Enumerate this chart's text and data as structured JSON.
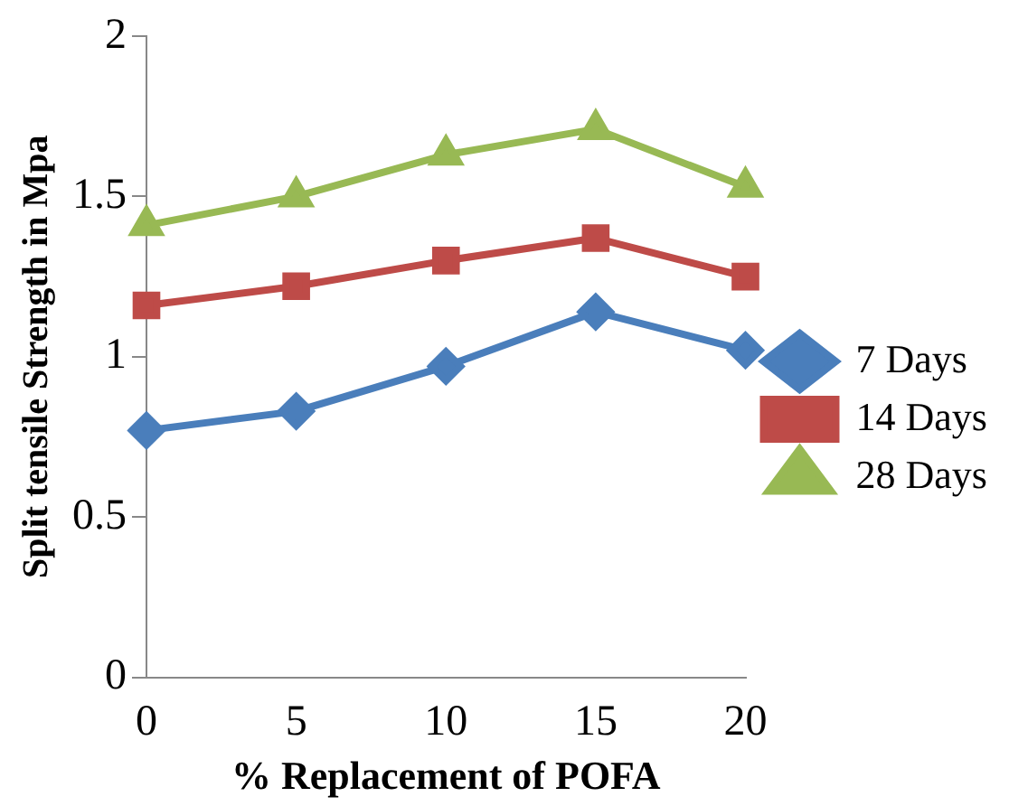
{
  "chart_data": {
    "type": "line",
    "xlabel": "% Replacement of POFA",
    "ylabel": "Split tensile Strength in Mpa",
    "categories": [
      "0",
      "5",
      "10",
      "15",
      "20"
    ],
    "series": [
      {
        "name": "7 Days",
        "color": "#4a7ebb",
        "marker": "diamond",
        "values": [
          0.77,
          0.83,
          0.97,
          1.14,
          1.02
        ]
      },
      {
        "name": "14 Days",
        "color": "#be4b48",
        "marker": "square",
        "values": [
          1.16,
          1.22,
          1.3,
          1.37,
          1.25
        ]
      },
      {
        "name": "28 Days",
        "color": "#98b954",
        "marker": "triangle",
        "values": [
          1.41,
          1.5,
          1.63,
          1.71,
          1.53
        ]
      }
    ],
    "ylim": [
      0,
      2
    ],
    "yticks": [
      0,
      0.5,
      1,
      1.5,
      2
    ],
    "grid": false,
    "legend": "right"
  }
}
